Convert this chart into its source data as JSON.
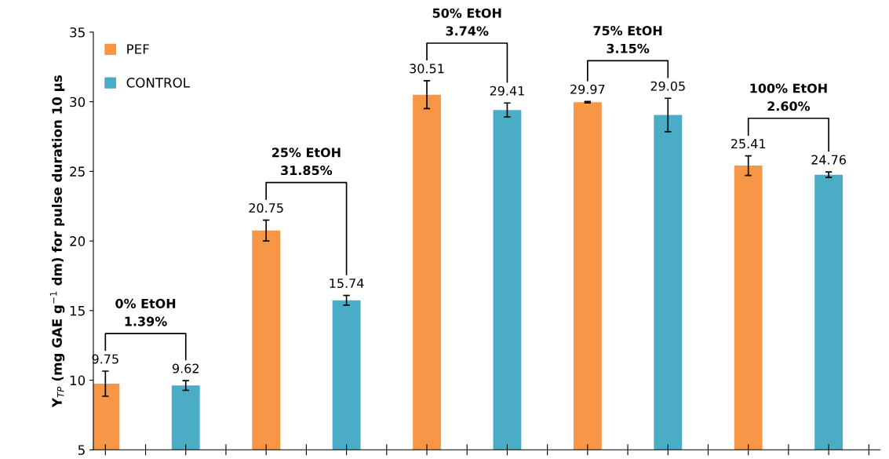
{
  "chart_data": {
    "type": "bar",
    "ylabel": "Y$_{TP}$ (mg GAE g$^{−1}$ dm) for pulse duration 10 μs",
    "categories": [
      null,
      null,
      null,
      null,
      null
    ],
    "series": [
      {
        "name": "PEF",
        "color": "#f79646",
        "values": [
          9.75,
          20.75,
          30.51,
          29.97,
          25.41
        ],
        "errors": [
          0.9,
          0.75,
          1.0,
          0.05,
          0.7
        ]
      },
      {
        "name": "CONTROL",
        "color": "#4bacc6",
        "values": [
          9.62,
          15.74,
          29.41,
          29.05,
          24.76
        ],
        "errors": [
          0.35,
          0.35,
          0.5,
          1.2,
          0.2
        ]
      }
    ],
    "ylim": [
      5,
      35
    ],
    "yticks": [
      5,
      10,
      15,
      20,
      25,
      30,
      35
    ],
    "grid": false,
    "legend": "top left",
    "data_labels": true,
    "annotations": [
      "0% EtOH\n1.39%",
      "25% EtOH\n31.85%",
      "50% EtOH\n3.74%",
      "75% EtOH\n3.15%",
      "100% EtOH\n2.60%"
    ]
  }
}
